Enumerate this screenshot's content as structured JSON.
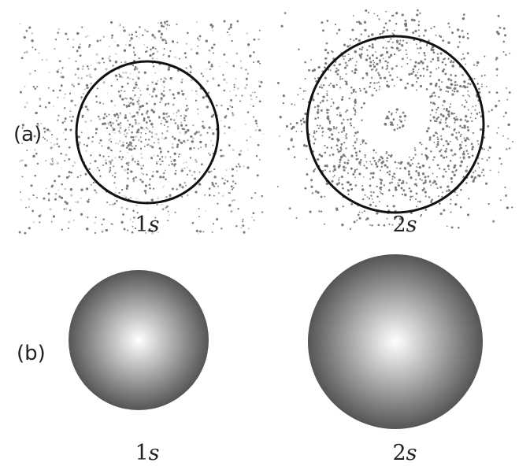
{
  "rows": [
    {
      "id": "a",
      "label": "(a)",
      "panels": [
        {
          "number": "1",
          "subshell": "s"
        },
        {
          "number": "2",
          "subshell": "s"
        }
      ]
    },
    {
      "id": "b",
      "label": "(b)",
      "panels": [
        {
          "number": "1",
          "subshell": "s"
        },
        {
          "number": "2",
          "subshell": "s"
        }
      ]
    }
  ],
  "colors": {
    "dot": "#7a7a7a",
    "boundary": "#111111",
    "sphere_center": "#ffffff",
    "sphere_edge": "#555555",
    "background": "#ffffff"
  }
}
